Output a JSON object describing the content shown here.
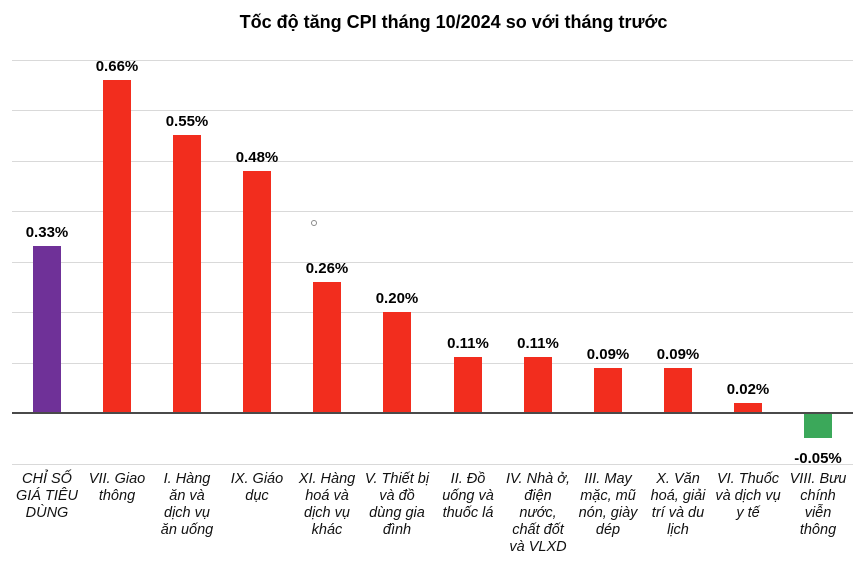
{
  "chart_data": {
    "type": "bar",
    "title": "Tốc độ tăng CPI tháng 10/2024 so với tháng trước",
    "xlabel": "",
    "ylabel": "",
    "unit": "%",
    "ylim": [
      -0.1,
      0.7
    ],
    "gridline_step": 0.1,
    "grid": true,
    "legend_position": "none",
    "categories": [
      "CHỈ SỐ GIÁ TIÊU DÙNG",
      "VII. Giao thông",
      "I. Hàng ăn và dịch vụ ăn uống",
      "IX. Giáo dục",
      "XI. Hàng hoá và dịch vụ khác",
      "V. Thiết bị và đồ dùng gia đình",
      "II. Đồ uống và thuốc lá",
      "IV. Nhà ở, điện nước, chất đốt và VLXD",
      "III. May mặc, mũ nón, giày dép",
      "X. Văn hoá, giải trí và du lịch",
      "VI. Thuốc và dịch vụ y tế",
      "VIII. Bưu chính viễn thông"
    ],
    "values": [
      0.33,
      0.66,
      0.55,
      0.48,
      0.26,
      0.2,
      0.11,
      0.11,
      0.09,
      0.09,
      0.02,
      -0.05
    ],
    "value_labels": [
      "0.33%",
      "0.66%",
      "0.55%",
      "0.48%",
      "0.26%",
      "0.20%",
      "0.11%",
      "0.11%",
      "0.09%",
      "0.09%",
      "0.02%",
      "-0.05%"
    ],
    "bar_colors": [
      "#6F3198",
      "#F22D1E",
      "#F22D1E",
      "#F22D1E",
      "#F22D1E",
      "#F22D1E",
      "#F22D1E",
      "#F22D1E",
      "#F22D1E",
      "#F22D1E",
      "#F22D1E",
      "#3BA85A"
    ],
    "colors": {
      "cpi_total_highlight": "#6F3198",
      "positive_default": "#F22D1E",
      "negative": "#3BA85A",
      "gridline": "#D9D9D9",
      "zero_axis": "#4A4A4A",
      "text": "#000000"
    },
    "annotations": [
      {
        "glyph": "°",
        "description": "small stray circle mark above 0.26% label"
      }
    ]
  }
}
